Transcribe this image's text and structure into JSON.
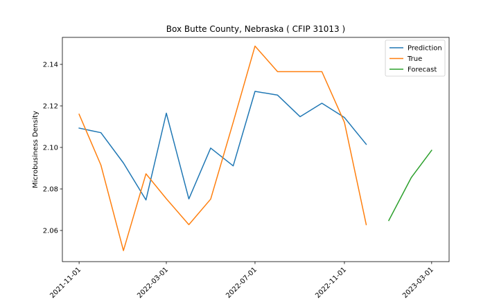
{
  "chart_data": {
    "type": "line",
    "title": "Box Butte County, Nebraska ( CFIP 31013 )",
    "xlabel": "",
    "ylabel": "Microbusiness Density",
    "xlim": [
      "2021-10-09",
      "2023-03-25"
    ],
    "ylim": [
      2.045,
      2.153
    ],
    "x_ticks": [
      "2021-11-01",
      "2022-03-01",
      "2022-07-01",
      "2022-11-01",
      "2023-03-01"
    ],
    "y_ticks": [
      2.06,
      2.08,
      2.1,
      2.12,
      2.14
    ],
    "y_tick_labels": [
      "2.06",
      "2.08",
      "2.10",
      "2.12",
      "2.14"
    ],
    "grid": false,
    "legend_position": "top-right",
    "series": [
      {
        "name": "Prediction",
        "color": "#1f77b4",
        "x": [
          "2021-11-01",
          "2021-12-01",
          "2022-01-01",
          "2022-02-01",
          "2022-03-01",
          "2022-04-01",
          "2022-05-01",
          "2022-06-01",
          "2022-07-01",
          "2022-08-01",
          "2022-09-01",
          "2022-10-01",
          "2022-11-01",
          "2022-12-01"
        ],
        "y": [
          2.1093,
          2.1071,
          2.0925,
          2.0747,
          2.1165,
          2.0752,
          2.0997,
          2.0911,
          2.127,
          2.1252,
          2.1148,
          2.1213,
          2.1144,
          2.1015
        ]
      },
      {
        "name": "True",
        "color": "#ff7f0e",
        "x": [
          "2021-11-01",
          "2021-12-01",
          "2022-01-01",
          "2022-02-01",
          "2022-03-01",
          "2022-04-01",
          "2022-05-01",
          "2022-06-01",
          "2022-07-01",
          "2022-08-01",
          "2022-09-01",
          "2022-10-01",
          "2022-11-01",
          "2022-12-01"
        ],
        "y": [
          2.116,
          2.0915,
          2.0503,
          2.0873,
          2.0753,
          2.0628,
          2.0751,
          2.1121,
          2.1488,
          2.1365,
          2.1365,
          2.1365,
          2.1121,
          2.0628
        ]
      },
      {
        "name": "Forecast",
        "color": "#2ca02c",
        "x": [
          "2023-01-01",
          "2023-02-01",
          "2023-03-01"
        ],
        "y": [
          2.0648,
          2.0855,
          2.0986
        ]
      }
    ]
  }
}
